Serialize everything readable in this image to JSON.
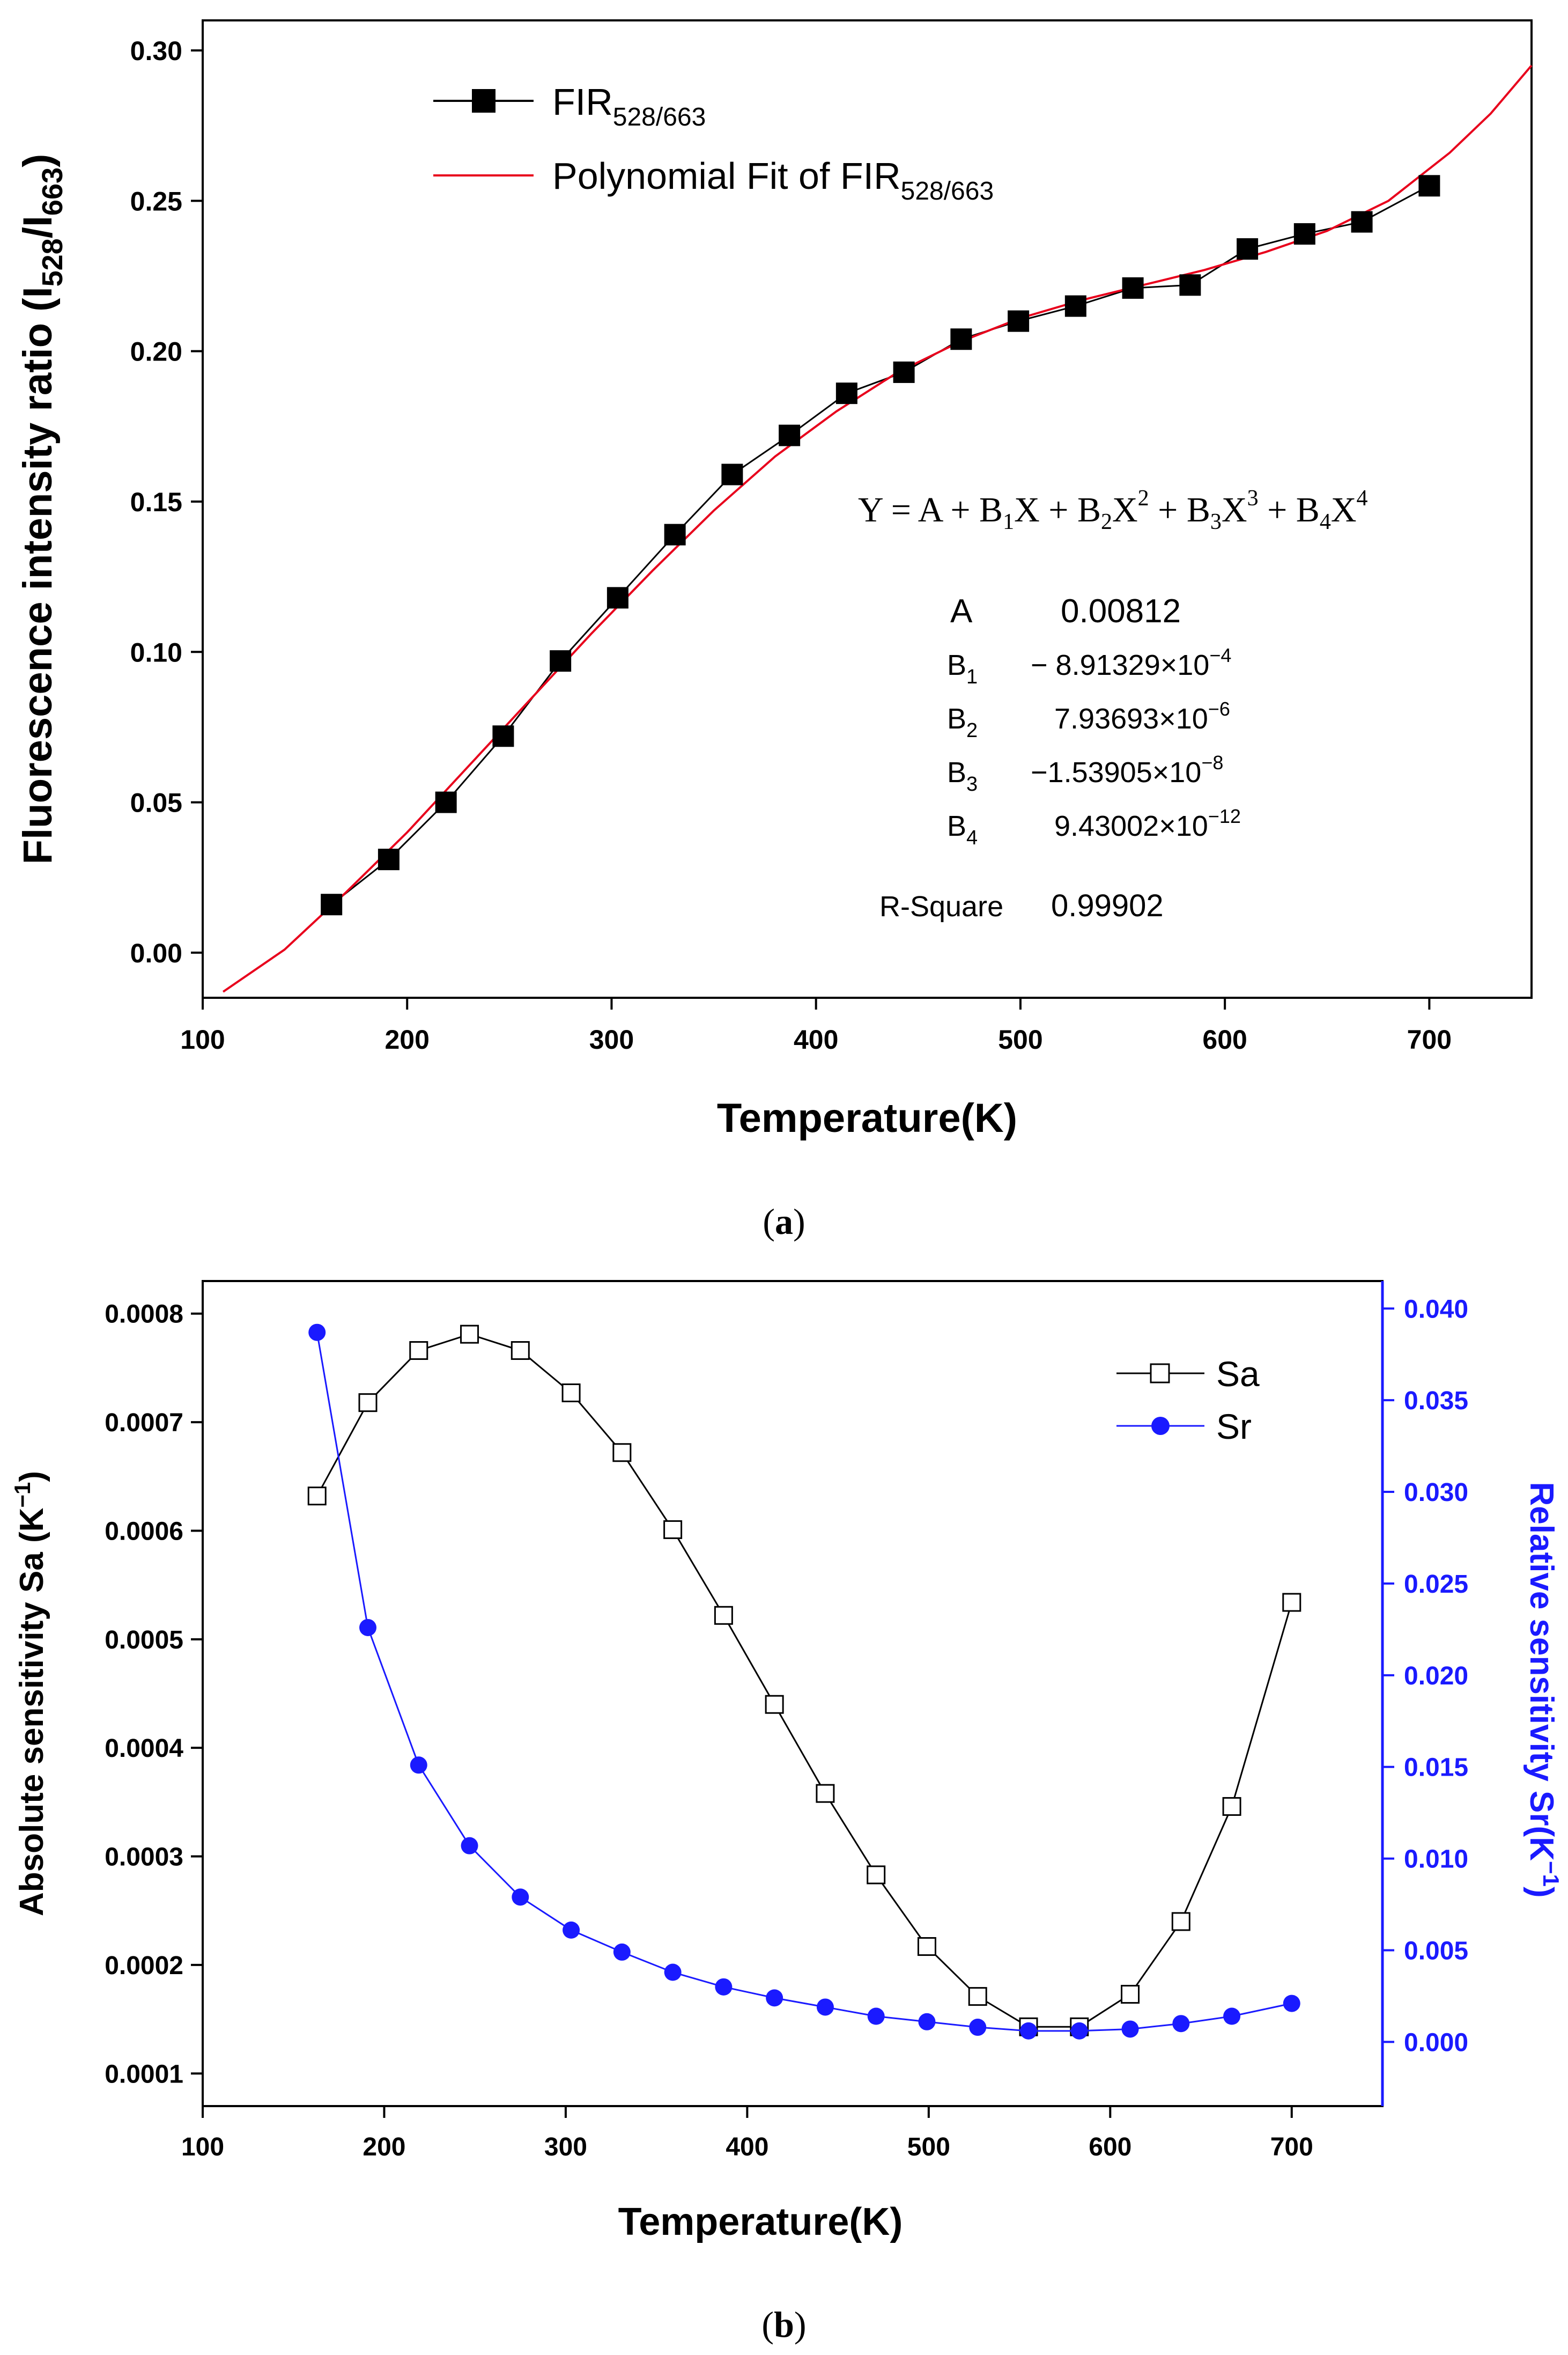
{
  "panels": {
    "a": {
      "caption_letter": "a"
    },
    "b": {
      "caption_letter": "b"
    }
  },
  "colors": {
    "black": "#000000",
    "fit_red": "#e8001c",
    "sr_blue": "#1a1aff",
    "axis_blue": "#1a1aff"
  },
  "chart_data": [
    {
      "type": "line",
      "title": "",
      "xlabel": "Temperature(K)",
      "ylabel": "Fluorescence intensity ratio (I528/I663)",
      "ylabel_parts": {
        "main": "Fluorescence intensity ratio (I",
        "sub1": "528",
        "slash": "/I",
        "sub2": "663",
        "close": ")"
      },
      "xlim": [
        100,
        750
      ],
      "ylim": [
        -0.015,
        0.31
      ],
      "x_ticks": [
        100,
        200,
        300,
        400,
        500,
        600,
        700
      ],
      "x_tick_labels": [
        "100",
        "200",
        "300",
        "400",
        "500",
        "600",
        "700"
      ],
      "y_ticks": [
        0.0,
        0.05,
        0.1,
        0.15,
        0.2,
        0.25,
        0.3
      ],
      "y_tick_labels": [
        "0.00",
        "0.05",
        "0.10",
        "0.15",
        "0.20",
        "0.25",
        "0.30"
      ],
      "legend_position": "top-left",
      "series": [
        {
          "name": "FIR528/663",
          "label_main": "FIR",
          "label_sub": "528/663",
          "marker": "filled-square",
          "color": "#000000",
          "x": [
            163,
            191,
            219,
            247,
            275,
            303,
            331,
            359,
            387,
            415,
            443,
            471,
            499,
            527,
            555,
            583,
            611,
            639,
            667,
            700
          ],
          "y": [
            0.016,
            0.031,
            0.05,
            0.072,
            0.097,
            0.118,
            0.139,
            0.159,
            0.172,
            0.186,
            0.193,
            0.204,
            0.21,
            0.215,
            0.221,
            0.222,
            0.234,
            0.239,
            0.243,
            0.255
          ]
        },
        {
          "name": "Polynomial Fit of FIR528/663",
          "label_main": "Polynomial Fit of FIR",
          "label_sub": "528/663",
          "marker": "none",
          "color": "#e8001c",
          "x": [
            110,
            140,
            170,
            200,
            230,
            260,
            290,
            320,
            350,
            380,
            410,
            440,
            470,
            500,
            530,
            560,
            590,
            620,
            650,
            680,
            710,
            730,
            750
          ],
          "y": [
            -0.013,
            0.001,
            0.02,
            0.04,
            0.062,
            0.084,
            0.106,
            0.127,
            0.147,
            0.165,
            0.18,
            0.193,
            0.203,
            0.211,
            0.217,
            0.222,
            0.227,
            0.233,
            0.24,
            0.25,
            0.266,
            0.279,
            0.295
          ]
        }
      ],
      "equation": {
        "text_parts": [
          "Y = A + B",
          "1",
          "X + B",
          "2",
          "X",
          "2",
          " + B",
          "3",
          "X",
          "3",
          " + B",
          "4",
          "X",
          "4"
        ]
      },
      "fit_params": [
        {
          "name": "A",
          "sub": "",
          "value": "0.00812",
          "exp": ""
        },
        {
          "name": "B",
          "sub": "1",
          "value": "− 8.91329×10",
          "exp": "−4"
        },
        {
          "name": "B",
          "sub": "2",
          "value": "7.93693×10",
          "exp": "−6"
        },
        {
          "name": "B",
          "sub": "3",
          "value": "−1.53905×10",
          "exp": "−8"
        },
        {
          "name": "B",
          "sub": "4",
          "value": "9.43002×10",
          "exp": "−12"
        }
      ],
      "r_square": {
        "label": "R-Square",
        "value": "0.99902"
      }
    },
    {
      "type": "line",
      "title": "",
      "xlabel": "Temperature(K)",
      "ylabel": "Absolute sensitivity Sa (K−1)",
      "ylabel_parts": {
        "main": "Absolute sensitivity Sa (K",
        "sup": "−1",
        "close": ")"
      },
      "y2label": "Relative sensitivity Sr(K−1)",
      "y2label_parts": {
        "main": "Relative sensitivity Sr(K",
        "sup": "−1",
        "close": ")"
      },
      "xlim": [
        100,
        750
      ],
      "ylim": [
        7e-05,
        0.00083
      ],
      "y2lim": [
        -0.0035,
        0.0415
      ],
      "x_ticks": [
        100,
        200,
        300,
        400,
        500,
        600,
        700
      ],
      "x_tick_labels": [
        "100",
        "200",
        "300",
        "400",
        "500",
        "600",
        "700"
      ],
      "y_ticks": [
        0.0001,
        0.0002,
        0.0003,
        0.0004,
        0.0005,
        0.0006,
        0.0007,
        0.0008
      ],
      "y_tick_labels": [
        "0.0001",
        "0.0002",
        "0.0003",
        "0.0004",
        "0.0005",
        "0.0006",
        "0.0007",
        "0.0008"
      ],
      "y2_ticks": [
        0.0,
        0.005,
        0.01,
        0.015,
        0.02,
        0.025,
        0.03,
        0.035,
        0.04
      ],
      "y2_tick_labels": [
        "0.000",
        "0.005",
        "0.010",
        "0.015",
        "0.020",
        "0.025",
        "0.030",
        "0.035",
        "0.040"
      ],
      "legend_position": "top-right",
      "series": [
        {
          "name": "Sa",
          "axis": "left",
          "marker": "open-square",
          "color": "#000000",
          "x": [
            163,
            191,
            219,
            247,
            275,
            303,
            331,
            359,
            387,
            415,
            443,
            471,
            499,
            527,
            555,
            583,
            611,
            639,
            667,
            700
          ],
          "y": [
            0.000632,
            0.000718,
            0.000766,
            0.000781,
            0.000766,
            0.000727,
            0.000672,
            0.000601,
            0.000522,
            0.00044,
            0.000358,
            0.000283,
            0.000217,
            0.000171,
            0.000143,
            0.000143,
            0.000173,
            0.00024,
            0.000346,
            0.000534
          ]
        },
        {
          "name": "Sr",
          "axis": "right",
          "marker": "filled-circle",
          "color": "#1a1aff",
          "x": [
            163,
            191,
            219,
            247,
            275,
            303,
            331,
            359,
            387,
            415,
            443,
            471,
            499,
            527,
            555,
            583,
            611,
            639,
            667,
            700
          ],
          "y": [
            0.0387,
            0.0226,
            0.0151,
            0.0107,
            0.0079,
            0.0061,
            0.0049,
            0.0038,
            0.003,
            0.0024,
            0.0019,
            0.0014,
            0.0011,
            0.0008,
            0.0006,
            0.0006,
            0.0007,
            0.001,
            0.0014,
            0.0021
          ]
        }
      ]
    }
  ]
}
